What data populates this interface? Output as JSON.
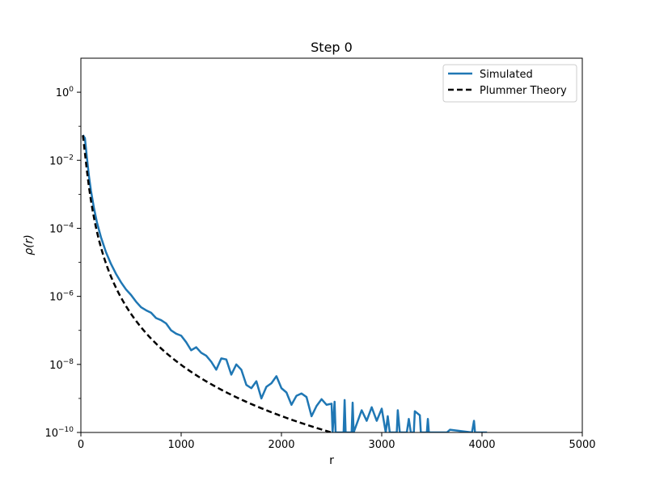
{
  "chart_data": {
    "type": "line",
    "title": "Step 0",
    "xlabel": "r",
    "ylabel": "ρ(r)",
    "xlim": [
      0,
      5000
    ],
    "ylim_log10": [
      -10,
      1
    ],
    "y_scale": "log",
    "grid": false,
    "legend_position": "top-right",
    "x_ticks": [
      {
        "value": 0,
        "label": "0"
      },
      {
        "value": 1000,
        "label": "1000"
      },
      {
        "value": 2000,
        "label": "2000"
      },
      {
        "value": 3000,
        "label": "3000"
      },
      {
        "value": 4000,
        "label": "4000"
      },
      {
        "value": 5000,
        "label": "5000"
      }
    ],
    "y_ticks": [
      {
        "exp": 0,
        "base": "10",
        "sup": "0"
      },
      {
        "exp": -2,
        "base": "10",
        "sup": "−2"
      },
      {
        "exp": -4,
        "base": "10",
        "sup": "−4"
      },
      {
        "exp": -6,
        "base": "10",
        "sup": "−6"
      },
      {
        "exp": -8,
        "base": "10",
        "sup": "−8"
      },
      {
        "exp": -10,
        "base": "10",
        "sup": "−10"
      }
    ],
    "series": [
      {
        "name": "Simulated",
        "color": "#1f77b4",
        "style": "solid",
        "points": [
          [
            20,
            0.055
          ],
          [
            40,
            0.045
          ],
          [
            60,
            0.012
          ],
          [
            80,
            0.0035
          ],
          [
            100,
            0.0013
          ],
          [
            130,
            0.0004
          ],
          [
            160,
            0.00015
          ],
          [
            200,
            5.5e-05
          ],
          [
            250,
            2e-05
          ],
          [
            300,
            9e-06
          ],
          [
            350,
            4.6e-06
          ],
          [
            400,
            2.6e-06
          ],
          [
            450,
            1.6e-06
          ],
          [
            500,
            1.1e-06
          ],
          [
            550,
            7e-07
          ],
          [
            600,
            4.8e-07
          ],
          [
            650,
            3.9e-07
          ],
          [
            700,
            3.3e-07
          ],
          [
            750,
            2.3e-07
          ],
          [
            800,
            2e-07
          ],
          [
            850,
            1.6e-07
          ],
          [
            900,
            1e-07
          ],
          [
            950,
            8e-08
          ],
          [
            1000,
            7e-08
          ],
          [
            1050,
            4.5e-08
          ],
          [
            1100,
            2.6e-08
          ],
          [
            1150,
            3.2e-08
          ],
          [
            1200,
            2.2e-08
          ],
          [
            1250,
            1.8e-08
          ],
          [
            1300,
            1.2e-08
          ],
          [
            1350,
            7e-09
          ],
          [
            1400,
            1.5e-08
          ],
          [
            1450,
            1.4e-08
          ],
          [
            1500,
            5e-09
          ],
          [
            1550,
            1e-08
          ],
          [
            1600,
            7e-09
          ],
          [
            1650,
            2.5e-09
          ],
          [
            1700,
            2e-09
          ],
          [
            1750,
            3.2e-09
          ],
          [
            1800,
            1e-09
          ],
          [
            1850,
            2.2e-09
          ],
          [
            1900,
            2.8e-09
          ],
          [
            1950,
            4.5e-09
          ],
          [
            2000,
            2e-09
          ],
          [
            2050,
            1.5e-09
          ],
          [
            2100,
            6.5e-10
          ],
          [
            2150,
            1.2e-09
          ],
          [
            2200,
            1.4e-09
          ],
          [
            2250,
            1.1e-09
          ],
          [
            2300,
            3e-10
          ],
          [
            2350,
            6e-10
          ],
          [
            2400,
            9.5e-10
          ],
          [
            2450,
            6.5e-10
          ],
          [
            2500,
            7e-10
          ],
          [
            2510,
            1e-10
          ],
          [
            2530,
            8e-10
          ],
          [
            2540,
            1e-10
          ],
          [
            2620,
            1e-10
          ],
          [
            2630,
            9e-10
          ],
          [
            2640,
            1e-10
          ],
          [
            2700,
            1e-10
          ],
          [
            2710,
            7.5e-10
          ],
          [
            2720,
            1e-10
          ],
          [
            2800,
            4.5e-10
          ],
          [
            2850,
            2.2e-10
          ],
          [
            2900,
            5.5e-10
          ],
          [
            2950,
            2.2e-10
          ],
          [
            3000,
            5e-10
          ],
          [
            3040,
            1e-10
          ],
          [
            3060,
            3e-10
          ],
          [
            3080,
            1e-10
          ],
          [
            3150,
            1e-10
          ],
          [
            3160,
            4.5e-10
          ],
          [
            3180,
            1e-10
          ],
          [
            3250,
            1e-10
          ],
          [
            3270,
            2.5e-10
          ],
          [
            3290,
            1e-10
          ],
          [
            3320,
            1e-10
          ],
          [
            3330,
            4.2e-10
          ],
          [
            3380,
            3.2e-10
          ],
          [
            3390,
            1e-10
          ],
          [
            3450,
            1e-10
          ],
          [
            3460,
            2.5e-10
          ],
          [
            3470,
            1e-10
          ],
          [
            3650,
            1e-10
          ],
          [
            3680,
            1.2e-10
          ],
          [
            3900,
            1e-10
          ],
          [
            3920,
            2.2e-10
          ],
          [
            3930,
            1e-10
          ],
          [
            4000,
            1e-10
          ],
          [
            4050,
            1e-10
          ]
        ]
      },
      {
        "name": "Plummer Theory",
        "color": "#000000",
        "style": "dashed",
        "scale_a": 40,
        "rho0": 0.095,
        "r_start": 20,
        "r_end": 3700,
        "r_step": 20
      }
    ]
  }
}
